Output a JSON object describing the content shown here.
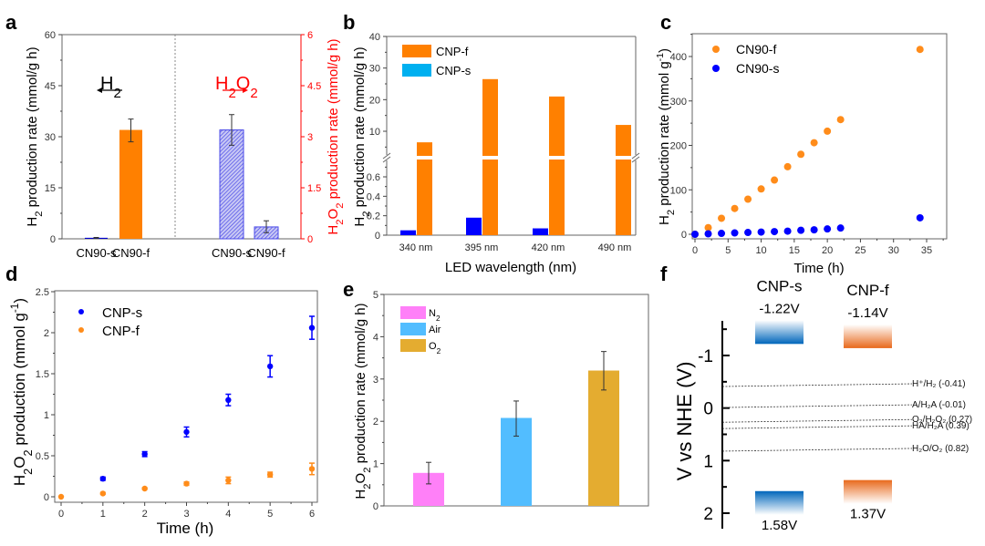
{
  "chart_data": [
    {
      "panel": "a",
      "type": "bar",
      "categories": [
        "CN90-s",
        "CN90-f",
        "CN90-s",
        "CN90-f"
      ],
      "left_axis": {
        "label": "H2 production rate (mmol/g h)",
        "ylim": [
          0,
          60
        ],
        "ticks": [
          "0",
          "15",
          "30",
          "45",
          "60"
        ],
        "color": "#000000"
      },
      "right_axis": {
        "label": "H2O2 production rate (mmol/g h)",
        "ylim": [
          0,
          6
        ],
        "ticks": [
          "0",
          "1.5",
          "3",
          "4.5",
          "6"
        ],
        "color": "#ff0000"
      },
      "groups": [
        {
          "name": "H2",
          "arrow": "left",
          "color": "#000000",
          "bars": [
            {
              "category": "CN90-s",
              "value": 0.3,
              "err_low": 0.2,
              "err_high": 0.4,
              "color": "#0000cc",
              "pattern": "solid"
            },
            {
              "category": "CN90-f",
              "value": 32,
              "err_low": 28.5,
              "err_high": 35.2,
              "color": "#ff8000",
              "pattern": "solid"
            }
          ]
        },
        {
          "name": "H2O2",
          "arrow": "right",
          "color": "#ff0000",
          "bars": [
            {
              "category": "CN90-s",
              "value": 3.2,
              "err_low": 2.75,
              "err_high": 3.65,
              "color": "#4a4ae8",
              "pattern": "hatched"
            },
            {
              "category": "CN90-f",
              "value": 0.35,
              "err_low": 0.18,
              "err_high": 0.53,
              "color": "#4a4ae8",
              "pattern": "hatched"
            }
          ]
        }
      ],
      "label_h2": "H2",
      "label_h2o2": "H2O2"
    },
    {
      "panel": "b",
      "type": "bar",
      "title": "",
      "xlabel": "LED wavelength (nm)",
      "ylabel": "H2 production rate (mmol/g h)",
      "categories": [
        "340 nm",
        "395 nm",
        "420 nm",
        "490 nm"
      ],
      "broken_axis": {
        "lower_range": [
          0,
          0.8
        ],
        "upper_range": [
          2,
          40
        ],
        "lower_ticks": [
          "0",
          "0.2",
          "0.4",
          "0.6"
        ],
        "upper_ticks": [
          "10",
          "20",
          "30",
          "40"
        ]
      },
      "series": [
        {
          "name": "CNP-f",
          "color": "#ff8000",
          "values": [
            6.5,
            26.5,
            21,
            12
          ]
        },
        {
          "name": "CNP-s",
          "color": "#0000ff",
          "legend_color": "#00b0f0",
          "values": [
            0.05,
            0.18,
            0.07,
            0
          ]
        }
      ],
      "legend": "top-left"
    },
    {
      "panel": "c",
      "type": "scatter",
      "xlabel": "Time (h)",
      "ylabel": "H2 production rate (mmol g-1)",
      "xlim": [
        -0.5,
        38
      ],
      "ylim": [
        -10,
        450
      ],
      "xticks": [
        "0",
        "5",
        "10",
        "15",
        "20",
        "25",
        "30",
        "35"
      ],
      "yticks": [
        "0",
        "100",
        "200",
        "300",
        "400"
      ],
      "series": [
        {
          "name": "CN90-f",
          "color": "#ff8c1a",
          "x": [
            0,
            2,
            4,
            6,
            8,
            10,
            12,
            14,
            16,
            18,
            20,
            22,
            34
          ],
          "y": [
            0,
            15,
            36,
            58,
            79,
            102,
            122,
            152,
            180,
            206,
            232,
            258,
            416
          ]
        },
        {
          "name": "CN90-s",
          "color": "#0000ff",
          "x": [
            0,
            2,
            4,
            6,
            8,
            10,
            12,
            14,
            16,
            18,
            20,
            22,
            34
          ],
          "y": [
            0,
            1,
            2,
            3,
            4,
            5,
            6,
            7,
            9,
            10,
            12,
            14,
            37
          ]
        }
      ],
      "legend": "top-left"
    },
    {
      "panel": "d",
      "type": "scatter",
      "xlabel": "Time (h)",
      "ylabel": "H2O2 production (mmol g-1)",
      "xlim": [
        -0.1,
        6.1
      ],
      "ylim": [
        -0.05,
        2.5
      ],
      "xticks": [
        "0",
        "1",
        "2",
        "3",
        "4",
        "5",
        "6"
      ],
      "yticks": [
        "0",
        "0.5",
        "1",
        "1.5",
        "2",
        "2.5"
      ],
      "series": [
        {
          "name": "CNP-s",
          "color": "#0000ff",
          "x": [
            1,
            2,
            3,
            4,
            5,
            6
          ],
          "y": [
            0.22,
            0.52,
            0.79,
            1.18,
            1.59,
            2.06
          ],
          "err": [
            0.02,
            0.03,
            0.06,
            0.07,
            0.13,
            0.14
          ]
        },
        {
          "name": "CNP-f",
          "color": "#ff8c1a",
          "x": [
            0,
            1,
            2,
            3,
            4,
            5,
            6
          ],
          "y": [
            0,
            0.04,
            0.1,
            0.16,
            0.2,
            0.27,
            0.34
          ],
          "err": [
            0,
            0.01,
            0.01,
            0.02,
            0.04,
            0.03,
            0.07
          ]
        }
      ],
      "legend": "top-left"
    },
    {
      "panel": "e",
      "type": "bar",
      "ylabel": "H2O2 production rate (mmol/g h)",
      "ylim": [
        0,
        5
      ],
      "yticks": [
        "0",
        "1",
        "2",
        "3",
        "4",
        "5"
      ],
      "categories": [
        "N2",
        "Air",
        "O2"
      ],
      "values": [
        0.78,
        2.08,
        3.2
      ],
      "err_low": [
        0.52,
        1.65,
        2.74
      ],
      "err_high": [
        1.03,
        2.48,
        3.65
      ],
      "colors": [
        "#ff80f8",
        "#52bdff",
        "#e4ac30"
      ],
      "legend": "top-left"
    },
    {
      "panel": "f",
      "type": "diagram",
      "ylabel": "V vs NHE (V)",
      "yrange": [
        -1.7,
        2.1
      ],
      "yticks": [
        "-1",
        "0",
        "1",
        "2"
      ],
      "materials": [
        {
          "name": "CNP-s",
          "cb": -1.22,
          "vb": 1.58,
          "cb_label": "-1.22V",
          "vb_label": "1.58V",
          "color": "#0066bb"
        },
        {
          "name": "CNP-f",
          "cb": -1.14,
          "vb": 1.37,
          "cb_label": "-1.14V",
          "vb_label": "1.37V",
          "color": "#e8691c"
        }
      ],
      "redox_levels": [
        {
          "label": "H⁺/H₂ (-0.41)",
          "value": -0.41
        },
        {
          "label": "A/H₂A (-0.01)",
          "value": -0.01
        },
        {
          "label": "O₂/H₂O₂ (0.27)",
          "value": 0.27
        },
        {
          "label": "HA/H₂A (0.39)",
          "value": 0.39
        },
        {
          "label": "H₂O/O₂ (0.82)",
          "value": 0.82
        }
      ]
    }
  ]
}
